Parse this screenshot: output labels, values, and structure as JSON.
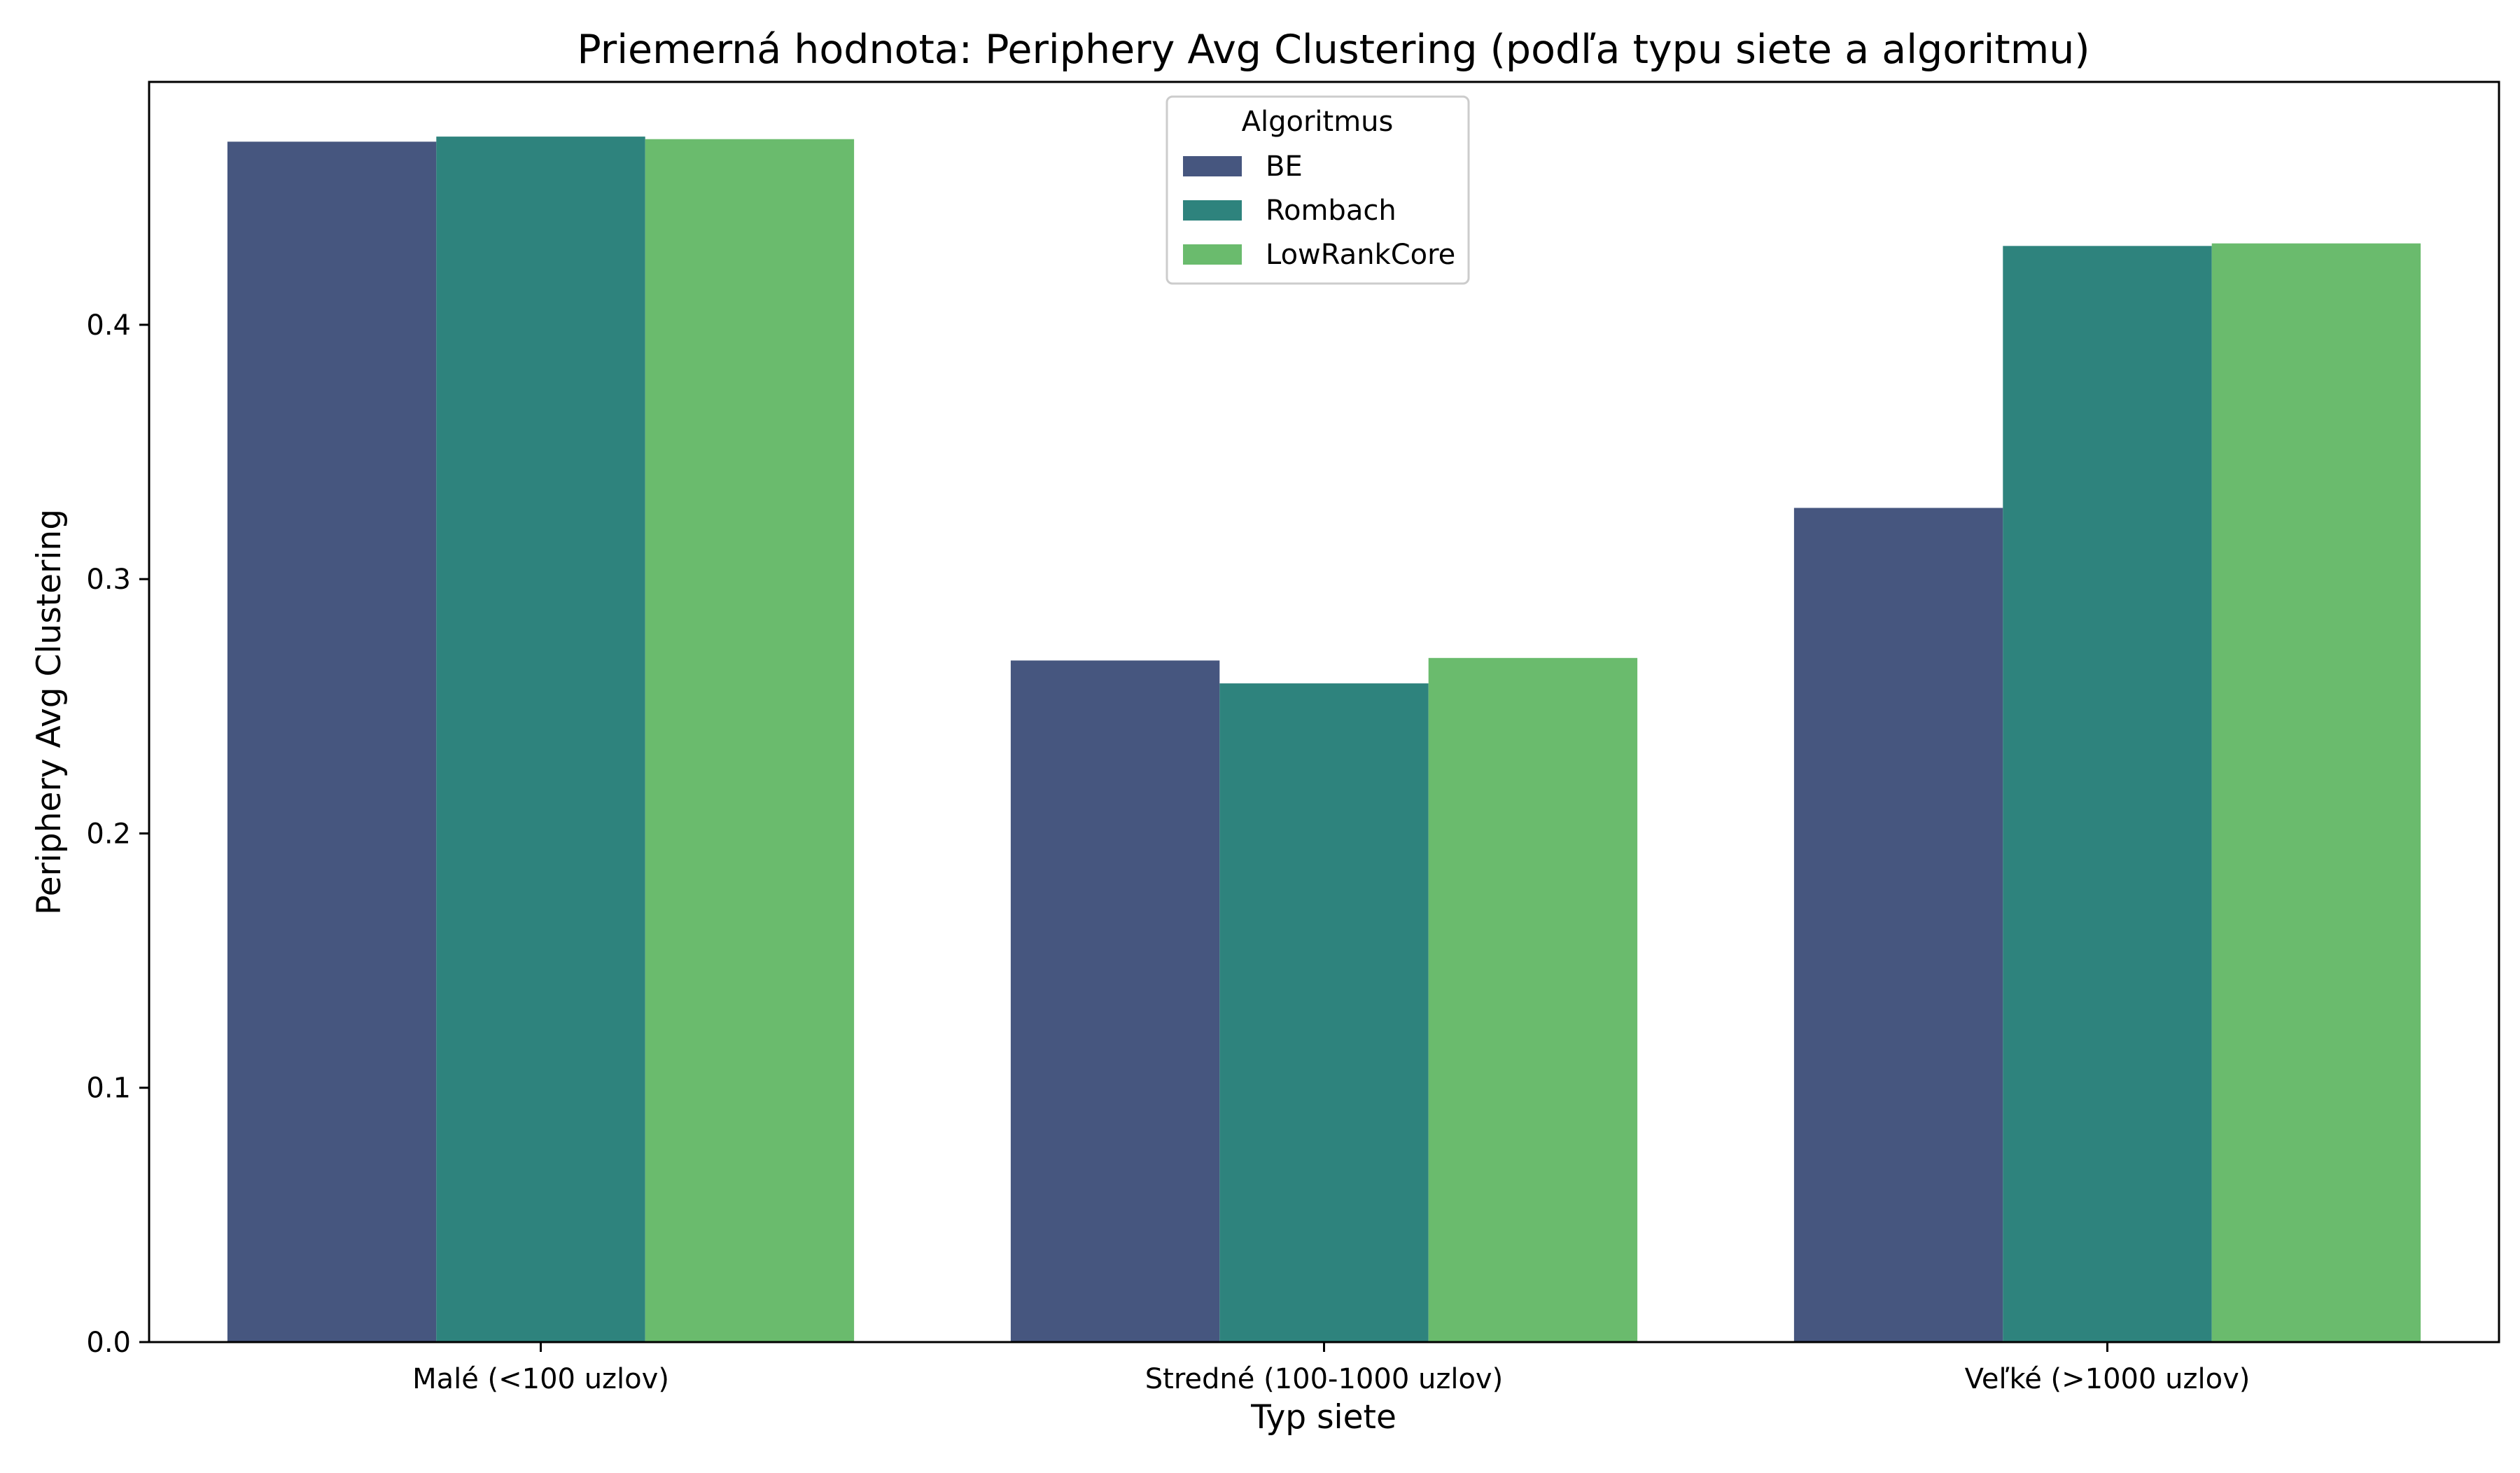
{
  "chart_data": {
    "type": "bar",
    "title": "Priemerná hodnota: Periphery Avg Clustering (podľa typu siete a algoritmu)",
    "xlabel": "Typ siete",
    "ylabel": "Periphery Avg Clustering",
    "categories": [
      "Malé (<100 uzlov)",
      "Stredné (100-1000 uzlov)",
      "Veľké (>1000 uzlov)"
    ],
    "series": [
      {
        "name": "BE",
        "color": "#46567f",
        "values": [
          0.472,
          0.268,
          0.328
        ]
      },
      {
        "name": "Rombach",
        "color": "#2e837d",
        "values": [
          0.474,
          0.259,
          0.431
        ]
      },
      {
        "name": "LowRankCore",
        "color": "#6abb6d",
        "values": [
          0.473,
          0.269,
          0.432
        ]
      }
    ],
    "ylim": [
      0,
      0.4955
    ],
    "yticks": [
      0.0,
      0.1,
      0.2,
      0.3,
      0.4
    ],
    "ytick_labels": [
      "0.0",
      "0.1",
      "0.2",
      "0.3",
      "0.4"
    ],
    "legend": {
      "title": "Algoritmus",
      "position": "top-center"
    },
    "grid": false
  }
}
